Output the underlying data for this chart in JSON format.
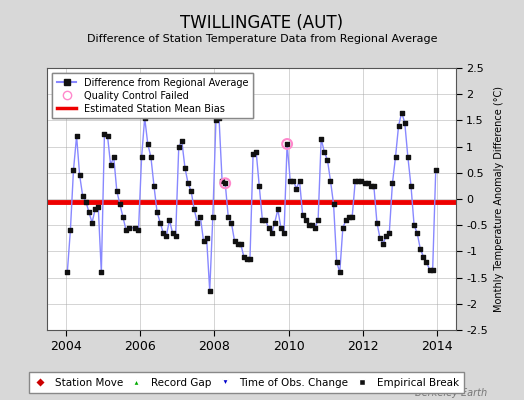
{
  "title": "TWILLINGATE (AUT)",
  "subtitle": "Difference of Station Temperature Data from Regional Average",
  "ylabel": "Monthly Temperature Anomaly Difference (°C)",
  "xlabel_ticks": [
    2004,
    2006,
    2008,
    2010,
    2012,
    2014
  ],
  "ylim": [
    -2.5,
    2.5
  ],
  "xlim": [
    2003.5,
    2014.5
  ],
  "yticks": [
    -2.5,
    -2,
    -1.5,
    -1,
    -0.5,
    0,
    0.5,
    1,
    1.5,
    2,
    2.5
  ],
  "bias_line_y": -0.05,
  "bias_line_color": "#ee0000",
  "line_color": "#8888ff",
  "marker_color": "#111111",
  "bg_color": "#d8d8d8",
  "plot_bg_color": "#ffffff",
  "qc_failed_points": [
    [
      2008.292,
      0.3
    ],
    [
      2009.958,
      1.05
    ]
  ],
  "watermark": "Berkeley Earth",
  "data": [
    [
      2004.042,
      -1.4
    ],
    [
      2004.125,
      -0.6
    ],
    [
      2004.208,
      0.55
    ],
    [
      2004.292,
      1.2
    ],
    [
      2004.375,
      0.45
    ],
    [
      2004.458,
      0.05
    ],
    [
      2004.542,
      -0.05
    ],
    [
      2004.625,
      -0.25
    ],
    [
      2004.708,
      -0.45
    ],
    [
      2004.792,
      -0.2
    ],
    [
      2004.875,
      -0.15
    ],
    [
      2004.958,
      -1.4
    ],
    [
      2005.042,
      1.25
    ],
    [
      2005.125,
      1.2
    ],
    [
      2005.208,
      0.65
    ],
    [
      2005.292,
      0.8
    ],
    [
      2005.375,
      0.15
    ],
    [
      2005.458,
      -0.1
    ],
    [
      2005.542,
      -0.35
    ],
    [
      2005.625,
      -0.6
    ],
    [
      2005.708,
      -0.55
    ],
    [
      2005.875,
      -0.55
    ],
    [
      2005.958,
      -0.6
    ],
    [
      2006.042,
      0.8
    ],
    [
      2006.125,
      1.55
    ],
    [
      2006.208,
      1.05
    ],
    [
      2006.292,
      0.8
    ],
    [
      2006.375,
      0.25
    ],
    [
      2006.458,
      -0.25
    ],
    [
      2006.542,
      -0.45
    ],
    [
      2006.625,
      -0.65
    ],
    [
      2006.708,
      -0.7
    ],
    [
      2006.792,
      -0.4
    ],
    [
      2006.875,
      -0.65
    ],
    [
      2006.958,
      -0.7
    ],
    [
      2007.042,
      1.0
    ],
    [
      2007.125,
      1.1
    ],
    [
      2007.208,
      0.6
    ],
    [
      2007.292,
      0.3
    ],
    [
      2007.375,
      0.15
    ],
    [
      2007.458,
      -0.2
    ],
    [
      2007.542,
      -0.45
    ],
    [
      2007.625,
      -0.35
    ],
    [
      2007.708,
      -0.8
    ],
    [
      2007.792,
      -0.75
    ],
    [
      2007.875,
      -1.75
    ],
    [
      2007.958,
      -0.35
    ],
    [
      2008.042,
      1.5
    ],
    [
      2008.125,
      1.55
    ],
    [
      2008.208,
      0.35
    ],
    [
      2008.292,
      0.3
    ],
    [
      2008.375,
      -0.35
    ],
    [
      2008.458,
      -0.45
    ],
    [
      2008.542,
      -0.8
    ],
    [
      2008.625,
      -0.85
    ],
    [
      2008.708,
      -0.85
    ],
    [
      2008.792,
      -1.1
    ],
    [
      2008.875,
      -1.15
    ],
    [
      2008.958,
      -1.15
    ],
    [
      2009.042,
      0.85
    ],
    [
      2009.125,
      0.9
    ],
    [
      2009.208,
      0.25
    ],
    [
      2009.292,
      -0.4
    ],
    [
      2009.375,
      -0.4
    ],
    [
      2009.458,
      -0.55
    ],
    [
      2009.542,
      -0.65
    ],
    [
      2009.625,
      -0.45
    ],
    [
      2009.708,
      -0.2
    ],
    [
      2009.792,
      -0.55
    ],
    [
      2009.875,
      -0.65
    ],
    [
      2009.958,
      1.05
    ],
    [
      2010.042,
      0.35
    ],
    [
      2010.125,
      0.35
    ],
    [
      2010.208,
      0.2
    ],
    [
      2010.292,
      0.35
    ],
    [
      2010.375,
      -0.3
    ],
    [
      2010.458,
      -0.4
    ],
    [
      2010.542,
      -0.5
    ],
    [
      2010.625,
      -0.5
    ],
    [
      2010.708,
      -0.55
    ],
    [
      2010.792,
      -0.4
    ],
    [
      2010.875,
      1.15
    ],
    [
      2010.958,
      0.9
    ],
    [
      2011.042,
      0.75
    ],
    [
      2011.125,
      0.35
    ],
    [
      2011.208,
      -0.1
    ],
    [
      2011.292,
      -1.2
    ],
    [
      2011.375,
      -1.4
    ],
    [
      2011.458,
      -0.55
    ],
    [
      2011.542,
      -0.4
    ],
    [
      2011.625,
      -0.35
    ],
    [
      2011.708,
      -0.35
    ],
    [
      2011.792,
      0.35
    ],
    [
      2011.875,
      0.35
    ],
    [
      2011.958,
      0.35
    ],
    [
      2012.042,
      0.3
    ],
    [
      2012.125,
      0.3
    ],
    [
      2012.208,
      0.25
    ],
    [
      2012.292,
      0.25
    ],
    [
      2012.375,
      -0.45
    ],
    [
      2012.458,
      -0.75
    ],
    [
      2012.542,
      -0.85
    ],
    [
      2012.625,
      -0.7
    ],
    [
      2012.708,
      -0.65
    ],
    [
      2012.792,
      0.3
    ],
    [
      2012.875,
      0.8
    ],
    [
      2012.958,
      1.4
    ],
    [
      2013.042,
      1.65
    ],
    [
      2013.125,
      1.45
    ],
    [
      2013.208,
      0.8
    ],
    [
      2013.292,
      0.25
    ],
    [
      2013.375,
      -0.5
    ],
    [
      2013.458,
      -0.65
    ],
    [
      2013.542,
      -0.95
    ],
    [
      2013.625,
      -1.1
    ],
    [
      2013.708,
      -1.2
    ],
    [
      2013.792,
      -1.35
    ],
    [
      2013.875,
      -1.35
    ],
    [
      2013.958,
      0.55
    ]
  ]
}
